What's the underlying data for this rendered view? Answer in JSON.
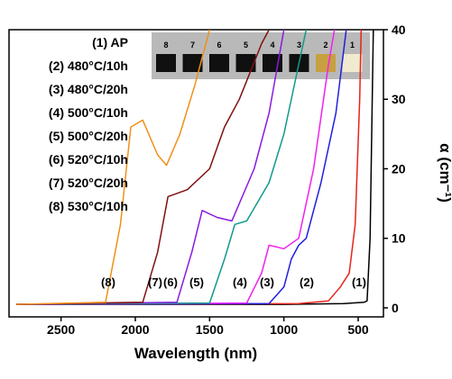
{
  "chart_data": {
    "type": "line",
    "xlabel": "Wavelength (nm)",
    "ylabel": "α (cm⁻¹)",
    "xlim": [
      2850,
      330
    ],
    "ylim": [
      -1.3,
      40
    ],
    "xticks": [
      2500,
      2000,
      1500,
      1000,
      500
    ],
    "yticks": [
      0,
      10,
      20,
      30,
      40
    ],
    "series": [
      {
        "name": "(1) AP",
        "color": "#000000",
        "x": [
          2800,
          1000,
          600,
          460,
          440,
          420,
          405,
          398
        ],
        "values": [
          0.5,
          0.5,
          0.6,
          0.8,
          1,
          10,
          30,
          40
        ]
      },
      {
        "name": "(2) 480°C/10h",
        "color": "#e8231c",
        "x": [
          2800,
          900,
          700,
          620,
          560,
          520,
          490,
          480
        ],
        "values": [
          0.5,
          0.6,
          1,
          3,
          5,
          12,
          30,
          40
        ]
      },
      {
        "name": "(3) 480°C/20h",
        "color": "#1f1fe0",
        "x": [
          2800,
          1100,
          1000,
          950,
          900,
          850,
          750,
          650,
          580
        ],
        "values": [
          0.5,
          0.6,
          3,
          7,
          9,
          10,
          18,
          28,
          40
        ]
      },
      {
        "name": "(4) 500°C/10h",
        "color": "#f020f0",
        "x": [
          2800,
          1250,
          1150,
          1100,
          1000,
          900,
          800,
          700,
          660
        ],
        "values": [
          0.5,
          0.7,
          5,
          9,
          8.5,
          10,
          20,
          35,
          40
        ]
      },
      {
        "name": "(5) 500°C/20h",
        "color": "#109a8a",
        "x": [
          2800,
          1500,
          1400,
          1330,
          1250,
          1100,
          1000,
          900,
          850
        ],
        "values": [
          0.5,
          0.7,
          7,
          12,
          12.5,
          18,
          25,
          35,
          40
        ]
      },
      {
        "name": "(6) 520°C/10h",
        "color": "#8a1ae0",
        "x": [
          2800,
          1720,
          1620,
          1550,
          1450,
          1350,
          1200,
          1100,
          1000
        ],
        "values": [
          0.5,
          0.8,
          8,
          14,
          13,
          12.5,
          20,
          28,
          40
        ]
      },
      {
        "name": "(7) 520°C/20h",
        "color": "#801010",
        "x": [
          2800,
          1950,
          1850,
          1780,
          1650,
          1500,
          1400,
          1300,
          1150,
          1100
        ],
        "values": [
          0.5,
          0.8,
          8,
          16,
          17,
          20,
          26,
          30,
          38,
          40
        ]
      },
      {
        "name": "(8) 530°C/10h",
        "color": "#f0901a",
        "x": [
          2800,
          2200,
          2100,
          2030,
          1950,
          1850,
          1790,
          1700,
          1600,
          1500
        ],
        "values": [
          0.5,
          0.8,
          12,
          26,
          27,
          22,
          20.5,
          25,
          32,
          40
        ]
      }
    ],
    "curve_labels": [
      "(1)",
      "(2)",
      "(3)",
      "(4)",
      "(5)",
      "(6)",
      "(7)",
      "(8)"
    ],
    "inset_labels": [
      "8",
      "7",
      "6",
      "5",
      "4",
      "3",
      "2",
      "1"
    ]
  }
}
